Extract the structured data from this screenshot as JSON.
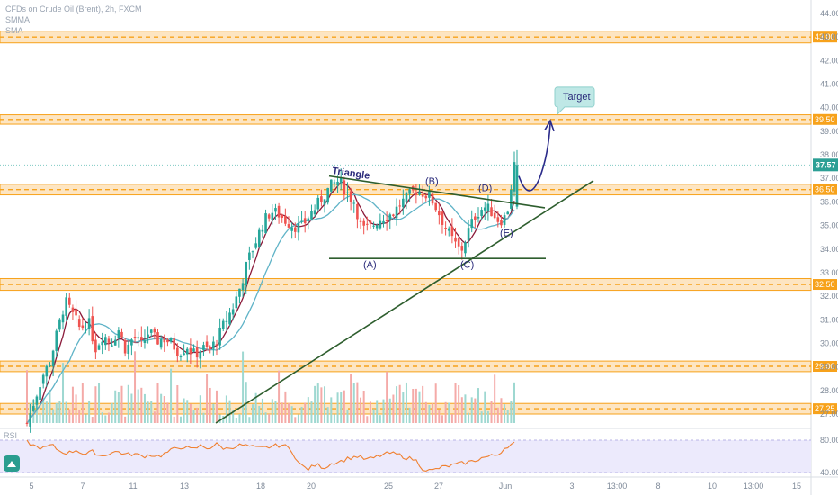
{
  "header": {
    "symbol_line": "CFDs on Crude Oil (Brent), 2h, FXCM",
    "indicator_1": "SMMA",
    "indicator_2": "SMA"
  },
  "rsi_label": "RSI",
  "colors": {
    "up": "#26a69a",
    "down": "#ef5350",
    "zone_fill": "#fde5c2",
    "zone_border": "#f7a21b",
    "trend": "#2e5e2e",
    "smma": "#8b1a3a",
    "sma": "#5fb3c7",
    "arrow": "#2b2b8a",
    "target_bubble": "#bfe8e6",
    "price_tag": "#2c9f95",
    "rsi_line": "#f08030",
    "rsi_band": "#eceafc"
  },
  "chart_data": {
    "type": "candlestick",
    "price_axis": {
      "min": 26.5,
      "max": 44.5,
      "ticks": [
        27,
        28,
        29,
        30,
        31,
        32,
        33,
        34,
        35,
        36,
        37,
        38,
        39,
        40,
        41,
        42,
        43,
        44
      ]
    },
    "time_axis": {
      "labels": [
        "5",
        "7",
        "11",
        "13",
        "18",
        "20",
        "25",
        "27",
        "Jun",
        "3",
        "13:00",
        "8",
        "10",
        "13:00",
        "15"
      ]
    },
    "last_price": "37.57",
    "zones": [
      {
        "label": "43.00",
        "low": 42.75,
        "high": 43.25
      },
      {
        "label": "39.50",
        "low": 39.3,
        "high": 39.7
      },
      {
        "label": "36.50",
        "low": 36.3,
        "high": 36.75
      },
      {
        "label": "32.50",
        "low": 32.25,
        "high": 32.75
      },
      {
        "label": "29.00",
        "low": 28.8,
        "high": 29.25
      },
      {
        "label": "27.25",
        "low": 27.0,
        "high": 27.45
      }
    ],
    "annotations": [
      {
        "text": "Triangle"
      },
      {
        "text": "(A)"
      },
      {
        "text": "(B)"
      },
      {
        "text": "(C)"
      },
      {
        "text": "(D)"
      },
      {
        "text": "(E)"
      },
      {
        "text": "Target"
      }
    ],
    "close_path": [
      26.6,
      27.6,
      28.6,
      29.2,
      30.5,
      31.8,
      31.2,
      30.6,
      31.0,
      29.8,
      30.4,
      30.0,
      30.6,
      29.7,
      30.3,
      29.9,
      30.5,
      30.1,
      30.2,
      30.0,
      29.6,
      29.9,
      29.5,
      29.8,
      29.7,
      30.2,
      30.9,
      31.5,
      32.4,
      33.5,
      34.3,
      35.1,
      35.6,
      35.5,
      35.2,
      35.0,
      34.9,
      35.4,
      35.8,
      36.3,
      36.7,
      36.9,
      36.4,
      36.0,
      34.8,
      34.9,
      35.2,
      35.4,
      35.5,
      35.9,
      36.2,
      36.5,
      36.4,
      36.2,
      35.6,
      34.9,
      34.3,
      33.9,
      34.8,
      35.5,
      35.8,
      35.6,
      35.2,
      35.4,
      37.57
    ],
    "rsi_axis": {
      "ticks": [
        80.0,
        40.0
      ]
    },
    "rsi_path": [
      78,
      72,
      70,
      74,
      66,
      64,
      68,
      62,
      66,
      60,
      64,
      66,
      62,
      63,
      60,
      62,
      60,
      65,
      70,
      72,
      68,
      73,
      70,
      75,
      69,
      72,
      74,
      72,
      70,
      71,
      73,
      74,
      68,
      50,
      44,
      50,
      46,
      52,
      54,
      58,
      60,
      56,
      58,
      62,
      64,
      62,
      58,
      56,
      44,
      42,
      46,
      48,
      50,
      52,
      54,
      58,
      60,
      62,
      72,
      76
    ]
  }
}
